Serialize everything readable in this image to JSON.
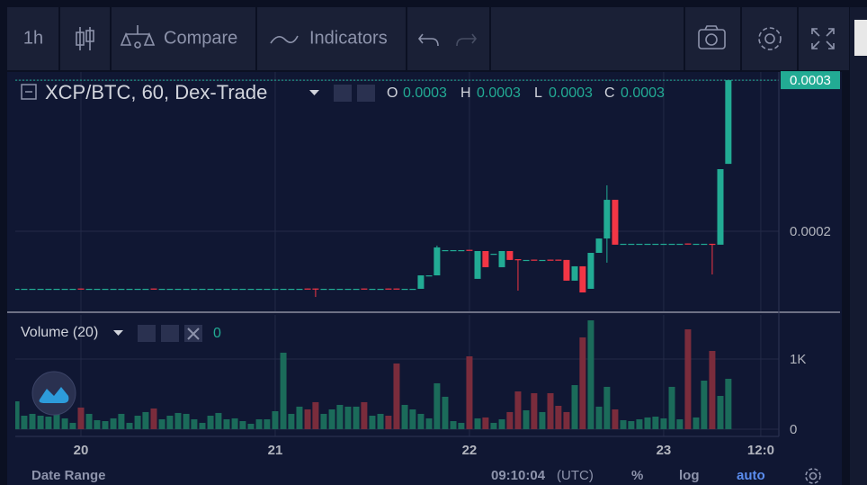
{
  "toolbar": {
    "interval": "1h",
    "compare": "Compare",
    "indicators": "Indicators"
  },
  "legend": {
    "symbol": "XCP/BTC, 60, Dex-Trade",
    "o_label": "O",
    "o": "0.0003",
    "h_label": "H",
    "h": "0.0003",
    "l_label": "L",
    "l": "0.0003",
    "c_label": "C",
    "c": "0.0003"
  },
  "volume_legend": {
    "name": "Volume (20)",
    "value": "0"
  },
  "footer": {
    "date_range": "Date Range",
    "time": "09:10:04",
    "timezone": "(UTC)",
    "percent": "%",
    "log": "log",
    "auto": "auto"
  },
  "chart_data": {
    "type": "candlestick",
    "up_color": "#22ab94",
    "down_color": "#f23645",
    "volume_up_color": "#1b6b5a",
    "volume_down_color": "#7a2c3c",
    "xlim": [
      19.662,
      23.593
    ],
    "xticks": [
      20,
      21,
      22,
      23,
      {
        "value": 23.5,
        "label": "12:0"
      }
    ],
    "ylim": [
      0.0001464,
      0.0003054
    ],
    "yticks": [
      0.0002,
      0.0003
    ],
    "volume_ylim": [
      -103,
      1628
    ],
    "volume_yticks": [
      0,
      {
        "value": 1000,
        "label": "1K"
      }
    ],
    "grid": true,
    "x": [
      19.667,
      19.708,
      19.75,
      19.792,
      19.833,
      19.875,
      19.917,
      19.958,
      20,
      20.042,
      20.083,
      20.125,
      20.167,
      20.208,
      20.25,
      20.292,
      20.333,
      20.375,
      20.417,
      20.458,
      20.5,
      20.542,
      20.583,
      20.625,
      20.667,
      20.708,
      20.75,
      20.792,
      20.833,
      20.875,
      20.917,
      20.958,
      21,
      21.042,
      21.083,
      21.125,
      21.167,
      21.208,
      21.25,
      21.292,
      21.333,
      21.375,
      21.417,
      21.458,
      21.5,
      21.542,
      21.583,
      21.625,
      21.667,
      21.708,
      21.75,
      21.792,
      21.833,
      21.875,
      21.917,
      21.958,
      22,
      22.042,
      22.083,
      22.125,
      22.167,
      22.208,
      22.25,
      22.292,
      22.333,
      22.375,
      22.417,
      22.458,
      22.5,
      22.542,
      22.583,
      22.625,
      22.667,
      22.708,
      22.75,
      22.792,
      22.833,
      22.875,
      22.917,
      22.958,
      23,
      23.042,
      23.083,
      23.125,
      23.167,
      23.208,
      23.25,
      23.292,
      23.333
    ],
    "open": [
      0.0001619,
      0.0001619,
      0.0001619,
      0.0001619,
      0.0001619,
      0.0001619,
      0.0001619,
      0.0001619,
      0.0001621,
      0.0001619,
      0.0001619,
      0.0001619,
      0.0001619,
      0.0001619,
      0.0001619,
      0.0001619,
      0.0001619,
      0.0001621,
      0.0001619,
      0.0001619,
      0.0001619,
      0.0001619,
      0.0001619,
      0.0001619,
      0.0001619,
      0.0001619,
      0.0001619,
      0.0001619,
      0.0001619,
      0.0001619,
      0.0001619,
      0.0001619,
      0.0001619,
      0.0001619,
      0.0001619,
      0.0001619,
      0.0001621,
      0.0001621,
      0.0001619,
      0.0001619,
      0.0001619,
      0.0001619,
      0.0001619,
      0.0001621,
      0.0001619,
      0.0001619,
      0.0001621,
      0.0001621,
      0.0001619,
      0.0001619,
      0.0001619,
      0.0001708,
      0.0001708,
      0.0001875,
      0.0001875,
      0.0001875,
      0.0001877,
      0.0001685,
      0.0001869,
      0.0001851,
      0.0001762,
      0.0001869,
      0.0001815,
      0.000181,
      0.0001812,
      0.000181,
      0.0001812,
      0.0001812,
      0.000181,
      0.0001673,
      0.0001768,
      0.0001619,
      0.0001857,
      0.0001952,
      0.0002208,
      0.0001917,
      0.0001917,
      0.0001917,
      0.0001917,
      0.0001917,
      0.0001917,
      0.0001917,
      0.0001917,
      0.0001919,
      0.0001917,
      0.0001917,
      0.0001917,
      0.0001911,
      0.0002446
    ],
    "high": [
      0.0001619,
      0.0001619,
      0.0001619,
      0.0001619,
      0.0001619,
      0.0001619,
      0.0001619,
      0.0001619,
      0.0001621,
      0.0001619,
      0.0001619,
      0.0001619,
      0.0001619,
      0.0001619,
      0.0001619,
      0.0001619,
      0.0001619,
      0.0001621,
      0.0001619,
      0.0001619,
      0.0001619,
      0.0001619,
      0.0001619,
      0.0001619,
      0.0001619,
      0.0001619,
      0.0001619,
      0.0001619,
      0.0001619,
      0.0001619,
      0.0001619,
      0.0001619,
      0.0001619,
      0.0001619,
      0.0001619,
      0.0001619,
      0.0001621,
      0.0001621,
      0.0001619,
      0.0001619,
      0.0001619,
      0.0001619,
      0.0001619,
      0.0001621,
      0.0001619,
      0.0001619,
      0.0001621,
      0.0001621,
      0.0001619,
      0.0001619,
      0.0001708,
      0.0001708,
      0.0001905,
      0.0001875,
      0.0001875,
      0.0001875,
      0.0001877,
      0.0001869,
      0.0001869,
      0.0001851,
      0.0001869,
      0.0001869,
      0.0001815,
      0.000181,
      0.0001812,
      0.000181,
      0.0001812,
      0.0001812,
      0.000181,
      0.0001768,
      0.0001768,
      0.0001857,
      0.0001952,
      0.0002304,
      0.0002208,
      0.0001917,
      0.0001917,
      0.0001917,
      0.0001917,
      0.0001917,
      0.0001917,
      0.0001917,
      0.0001917,
      0.0001919,
      0.0001917,
      0.0001917,
      0.0001917,
      0.0002411,
      0.0003
    ],
    "low": [
      0.0001619,
      0.0001619,
      0.0001619,
      0.0001619,
      0.0001619,
      0.0001619,
      0.0001619,
      0.0001619,
      0.0001619,
      0.0001619,
      0.0001619,
      0.0001619,
      0.0001619,
      0.0001619,
      0.0001619,
      0.0001619,
      0.0001619,
      0.0001619,
      0.0001619,
      0.0001619,
      0.0001619,
      0.0001619,
      0.0001619,
      0.0001619,
      0.0001619,
      0.0001619,
      0.0001619,
      0.0001619,
      0.0001619,
      0.0001619,
      0.0001619,
      0.0001619,
      0.0001619,
      0.0001619,
      0.0001619,
      0.0001619,
      0.0001619,
      0.0001565,
      0.0001619,
      0.0001619,
      0.0001619,
      0.0001619,
      0.0001619,
      0.0001619,
      0.0001619,
      0.0001619,
      0.0001619,
      0.0001619,
      0.0001619,
      0.0001619,
      0.0001619,
      0.0001708,
      0.0001708,
      0.0001875,
      0.0001875,
      0.0001875,
      0.0001875,
      0.0001685,
      0.0001762,
      0.0001851,
      0.0001762,
      0.000181,
      0.0001607,
      0.000181,
      0.000181,
      0.000181,
      0.000181,
      0.000181,
      0.0001673,
      0.0001673,
      0.0001595,
      0.0001619,
      0.0001857,
      0.0001792,
      0.0001911,
      0.0001917,
      0.0001917,
      0.0001917,
      0.0001917,
      0.0001917,
      0.0001917,
      0.0001917,
      0.0001917,
      0.0001917,
      0.0001917,
      0.0001917,
      0.0001714,
      0.0001911,
      0.0002446
    ],
    "close": [
      0.0001619,
      0.0001619,
      0.0001619,
      0.0001619,
      0.0001619,
      0.0001619,
      0.0001619,
      0.0001619,
      0.0001619,
      0.0001619,
      0.0001619,
      0.0001619,
      0.0001619,
      0.0001619,
      0.0001619,
      0.0001619,
      0.0001619,
      0.0001619,
      0.0001619,
      0.0001619,
      0.0001619,
      0.0001619,
      0.0001619,
      0.0001619,
      0.0001619,
      0.0001619,
      0.0001619,
      0.0001619,
      0.0001619,
      0.0001619,
      0.0001619,
      0.0001619,
      0.0001619,
      0.0001619,
      0.0001619,
      0.0001619,
      0.0001619,
      0.0001619,
      0.0001619,
      0.0001619,
      0.0001619,
      0.0001619,
      0.0001619,
      0.0001619,
      0.0001619,
      0.0001619,
      0.0001619,
      0.0001619,
      0.0001619,
      0.0001619,
      0.0001708,
      0.0001708,
      0.0001893,
      0.0001875,
      0.0001875,
      0.0001875,
      0.0001875,
      0.0001869,
      0.0001762,
      0.0001851,
      0.0001869,
      0.000181,
      0.000181,
      0.000181,
      0.000181,
      0.000181,
      0.000181,
      0.000181,
      0.0001673,
      0.0001768,
      0.0001595,
      0.0001857,
      0.0001952,
      0.0002208,
      0.0001911,
      0.0001917,
      0.0001917,
      0.0001917,
      0.0001917,
      0.0001917,
      0.0001917,
      0.0001917,
      0.0001917,
      0.0001917,
      0.0001917,
      0.0001917,
      0.0001911,
      0.0002411,
      0.0003
    ],
    "volume": [
      397,
      192,
      218,
      192,
      179,
      244,
      154,
      90,
      308,
      218,
      128,
      115,
      154,
      218,
      90,
      192,
      244,
      295,
      141,
      192,
      231,
      218,
      141,
      90,
      192,
      231,
      141,
      154,
      115,
      77,
      141,
      141,
      256,
      1090,
      218,
      321,
      282,
      385,
      218,
      282,
      346,
      321,
      321,
      385,
      192,
      218,
      192,
      936,
      346,
      282,
      218,
      154,
      654,
      462,
      115,
      90,
      1038,
      154,
      167,
      90,
      141,
      244,
      538,
      269,
      513,
      244,
      513,
      333,
      244,
      628,
      1308,
      1551,
      321,
      603,
      282,
      128,
      115,
      141,
      167,
      179,
      154,
      603,
      141,
      1423,
      167,
      692,
      1115,
      474,
      718
    ]
  }
}
